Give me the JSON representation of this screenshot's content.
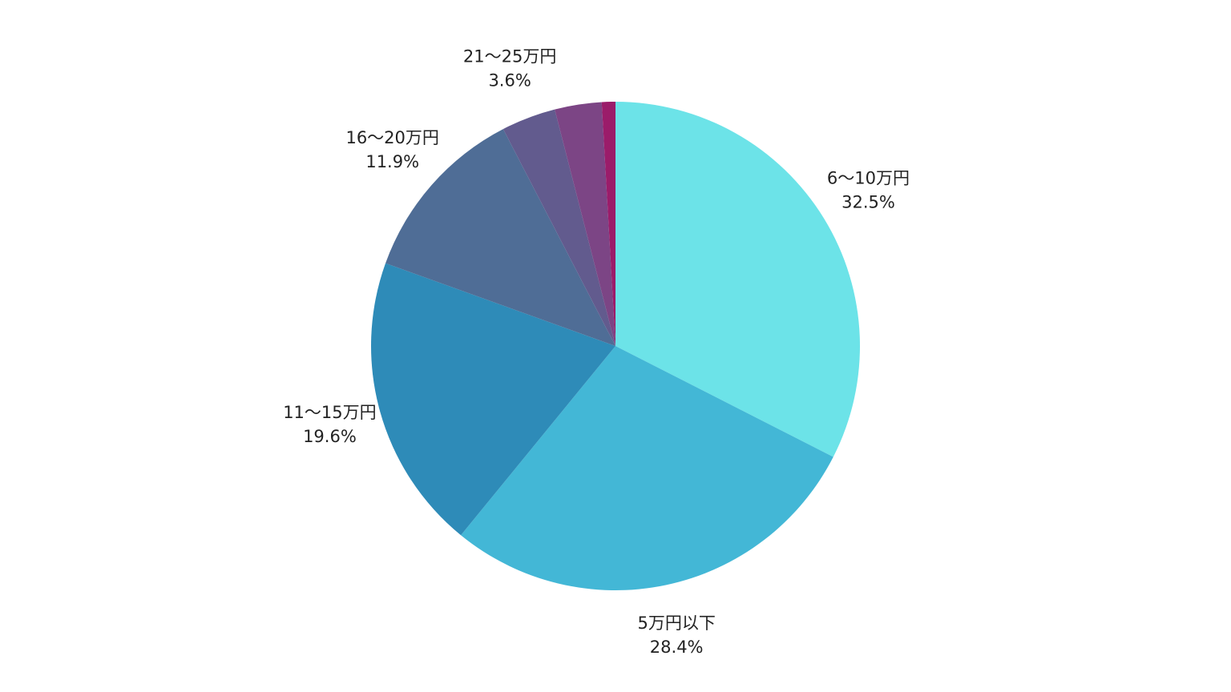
{
  "chart_data": {
    "type": "pie",
    "categories": [
      "6〜10万円",
      "5万円以下",
      "11〜15万円",
      "16〜20万円",
      "21〜25万円",
      null,
      null
    ],
    "values": [
      32.5,
      28.4,
      19.6,
      11.9,
      3.6,
      3.1,
      0.9
    ],
    "value_labels": [
      "32.5%",
      "28.4%",
      "19.6%",
      "11.9%",
      "3.6%",
      null,
      null
    ],
    "colors": [
      "#6ce3e8",
      "#43b7d6",
      "#2e8bb8",
      "#4f6d96",
      "#625b8e",
      "#7c4585",
      "#9b1c6a"
    ]
  }
}
